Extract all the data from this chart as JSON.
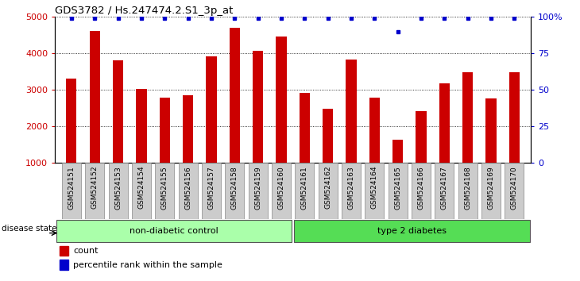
{
  "title": "GDS3782 / Hs.247474.2.S1_3p_at",
  "samples": [
    "GSM524151",
    "GSM524152",
    "GSM524153",
    "GSM524154",
    "GSM524155",
    "GSM524156",
    "GSM524157",
    "GSM524158",
    "GSM524159",
    "GSM524160",
    "GSM524161",
    "GSM524162",
    "GSM524163",
    "GSM524164",
    "GSM524165",
    "GSM524166",
    "GSM524167",
    "GSM524168",
    "GSM524169",
    "GSM524170"
  ],
  "counts": [
    3320,
    4620,
    3820,
    3030,
    2780,
    2860,
    3920,
    4700,
    4080,
    4470,
    2910,
    2490,
    3840,
    2790,
    1630,
    2430,
    3180,
    3480,
    2760,
    3480
  ],
  "percentiles": [
    99,
    99,
    99,
    99,
    99,
    99,
    99,
    99,
    99,
    99,
    99,
    99,
    99,
    99,
    90,
    99,
    99,
    99,
    99,
    99
  ],
  "bar_color": "#cc0000",
  "percentile_color": "#0000cc",
  "group1_label": "non-diabetic control",
  "group2_label": "type 2 diabetes",
  "group1_count": 10,
  "group2_count": 10,
  "group1_color": "#aaffaa",
  "group2_color": "#55dd55",
  "ylim_left": [
    1000,
    5000
  ],
  "ylim_right": [
    0,
    100
  ],
  "yticks_left": [
    1000,
    2000,
    3000,
    4000,
    5000
  ],
  "yticks_right": [
    0,
    25,
    50,
    75,
    100
  ],
  "yticklabels_right": [
    "0",
    "25",
    "50",
    "75",
    "100%"
  ],
  "legend_count_label": "count",
  "legend_percentile_label": "percentile rank within the sample",
  "disease_state_label": "disease state",
  "tick_box_color": "#cccccc",
  "tick_box_edge": "#888888"
}
